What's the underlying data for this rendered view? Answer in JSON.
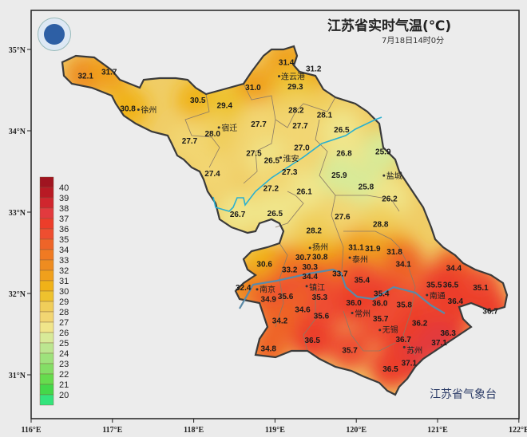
{
  "title": "江苏省实时气温(℃)",
  "subtitle": "7月18日14时0分",
  "watermark": "江苏省气象台",
  "axes": {
    "lon_ticks": [
      "116°E",
      "117°E",
      "118°E",
      "119°E",
      "120°E",
      "121°E",
      "122°E"
    ],
    "lat_ticks": [
      "35°N",
      "34°N",
      "33°N",
      "32°N",
      "31°N"
    ],
    "lon_range": [
      116,
      122
    ],
    "lat_range": [
      30.55,
      35.48
    ]
  },
  "legend": {
    "labels": [
      "40",
      "39",
      "38",
      "37",
      "36",
      "35",
      "34",
      "33",
      "32",
      "31",
      "30",
      "29",
      "28",
      "27",
      "26",
      "25",
      "24",
      "23",
      "22",
      "21",
      "20"
    ],
    "colors": [
      "#a01420",
      "#b81a24",
      "#d0262e",
      "#e23a3e",
      "#ec3d2a",
      "#ee4e30",
      "#ee6428",
      "#f07a22",
      "#ee8c20",
      "#f0a01c",
      "#f0b218",
      "#eec22e",
      "#f0ce5a",
      "#f2d672",
      "#f0e58a",
      "#d8ea98",
      "#bce690",
      "#9ee27c",
      "#84de66",
      "#66dc4e",
      "#44d84a",
      "#34e47c"
    ]
  },
  "cities": [
    {
      "name": "连云港",
      "lon": 119.05,
      "lat": 34.67
    },
    {
      "name": "徐州",
      "lon": 117.32,
      "lat": 34.26
    },
    {
      "name": "宿迁",
      "lon": 118.31,
      "lat": 34.04
    },
    {
      "name": "淮安",
      "lon": 119.07,
      "lat": 33.67
    },
    {
      "name": "盐城",
      "lon": 120.34,
      "lat": 33.45
    },
    {
      "name": "扬州",
      "lon": 119.43,
      "lat": 32.56
    },
    {
      "name": "泰州",
      "lon": 119.92,
      "lat": 32.44
    },
    {
      "name": "南京",
      "lon": 118.78,
      "lat": 32.05
    },
    {
      "name": "镇江",
      "lon": 119.39,
      "lat": 32.09
    },
    {
      "name": "常州",
      "lon": 119.95,
      "lat": 31.76
    },
    {
      "name": "南通",
      "lon": 120.87,
      "lat": 31.98
    },
    {
      "name": "无锡",
      "lon": 120.29,
      "lat": 31.55
    },
    {
      "name": "苏州",
      "lon": 120.59,
      "lat": 31.34
    }
  ],
  "readings": [
    {
      "v": "32.1",
      "lon": 116.67,
      "lat": 34.68
    },
    {
      "v": "31.7",
      "lon": 116.96,
      "lat": 34.73
    },
    {
      "v": "31.4",
      "lon": 119.14,
      "lat": 34.85
    },
    {
      "v": "31.2",
      "lon": 119.46,
      "lat": 34.77
    },
    {
      "v": "31.0",
      "lon": 118.73,
      "lat": 34.54
    },
    {
      "v": "29.3",
      "lon": 119.25,
      "lat": 34.55
    },
    {
      "v": "30.5",
      "lon": 118.05,
      "lat": 34.38
    },
    {
      "v": "29.4",
      "lon": 118.38,
      "lat": 34.32
    },
    {
      "v": "30.8",
      "lon": 117.19,
      "lat": 34.28
    },
    {
      "v": "28.2",
      "lon": 119.26,
      "lat": 34.26
    },
    {
      "v": "28.1",
      "lon": 119.61,
      "lat": 34.2
    },
    {
      "v": "27.7",
      "lon": 118.8,
      "lat": 34.09
    },
    {
      "v": "27.7",
      "lon": 119.31,
      "lat": 34.07
    },
    {
      "v": "26.5",
      "lon": 119.82,
      "lat": 34.02
    },
    {
      "v": "28.0",
      "lon": 118.24,
      "lat": 33.97
    },
    {
      "v": "27.7",
      "lon": 117.95,
      "lat": 33.88
    },
    {
      "v": "27.5",
      "lon": 118.74,
      "lat": 33.73
    },
    {
      "v": "27.0",
      "lon": 119.33,
      "lat": 33.77
    },
    {
      "v": "26.8",
      "lon": 119.85,
      "lat": 33.73
    },
    {
      "v": "25.9",
      "lon": 120.33,
      "lat": 33.75
    },
    {
      "v": "26.5",
      "lon": 118.96,
      "lat": 33.64
    },
    {
      "v": "27.4",
      "lon": 118.23,
      "lat": 33.48
    },
    {
      "v": "27.3",
      "lon": 119.18,
      "lat": 33.5
    },
    {
      "v": "25.9",
      "lon": 119.79,
      "lat": 33.46
    },
    {
      "v": "25.8",
      "lon": 120.12,
      "lat": 33.32
    },
    {
      "v": "26.1",
      "lon": 119.36,
      "lat": 33.26
    },
    {
      "v": "27.2",
      "lon": 118.95,
      "lat": 33.3
    },
    {
      "v": "26.2",
      "lon": 120.41,
      "lat": 33.17
    },
    {
      "v": "26.7",
      "lon": 118.54,
      "lat": 32.98
    },
    {
      "v": "26.5",
      "lon": 119.0,
      "lat": 32.99
    },
    {
      "v": "27.6",
      "lon": 119.83,
      "lat": 32.95
    },
    {
      "v": "28.8",
      "lon": 120.3,
      "lat": 32.86
    },
    {
      "v": "28.2",
      "lon": 119.48,
      "lat": 32.78
    },
    {
      "v": "31.1",
      "lon": 120.02,
      "lat": 32.56
    },
    {
      "v": "31.9",
      "lon": 120.18,
      "lat": 32.51
    },
    {
      "v": "31.8",
      "lon": 120.47,
      "lat": 32.52
    },
    {
      "v": "30.6",
      "lon": 118.87,
      "lat": 32.37
    },
    {
      "v": "30.8",
      "lon": 119.55,
      "lat": 32.45
    },
    {
      "v": "30.3",
      "lon": 119.43,
      "lat": 32.41
    },
    {
      "v": "30.7",
      "lon": 119.35,
      "lat": 32.37
    },
    {
      "v": "33.2",
      "lon": 119.18,
      "lat": 32.3
    },
    {
      "v": "34.1",
      "lon": 120.58,
      "lat": 32.37
    },
    {
      "v": "34.4",
      "lon": 121.2,
      "lat": 32.32
    },
    {
      "v": "33.7",
      "lon": 119.8,
      "lat": 32.25
    },
    {
      "v": "34.4",
      "lon": 119.43,
      "lat": 32.19
    },
    {
      "v": "35.4",
      "lon": 120.07,
      "lat": 32.17
    },
    {
      "v": "35.5",
      "lon": 121.0,
      "lat": 32.09
    },
    {
      "v": "36.5",
      "lon": 121.12,
      "lat": 32.11
    },
    {
      "v": "35.1",
      "lon": 121.53,
      "lat": 32.08
    },
    {
      "v": "32.4",
      "lon": 118.61,
      "lat": 32.08
    },
    {
      "v": "34.9",
      "lon": 118.92,
      "lat": 31.94
    },
    {
      "v": "35.6",
      "lon": 119.13,
      "lat": 31.97
    },
    {
      "v": "35.3",
      "lon": 119.55,
      "lat": 31.99
    },
    {
      "v": "35.4",
      "lon": 120.31,
      "lat": 31.99
    },
    {
      "v": "36.0",
      "lon": 120.29,
      "lat": 31.9
    },
    {
      "v": "36.0",
      "lon": 119.97,
      "lat": 31.88
    },
    {
      "v": "35.8",
      "lon": 120.59,
      "lat": 31.87
    },
    {
      "v": "36.4",
      "lon": 121.22,
      "lat": 31.91
    },
    {
      "v": "36.7",
      "lon": 121.65,
      "lat": 31.79
    },
    {
      "v": "34.6",
      "lon": 119.34,
      "lat": 31.81
    },
    {
      "v": "35.6",
      "lon": 119.57,
      "lat": 31.73
    },
    {
      "v": "34.2",
      "lon": 119.06,
      "lat": 31.67
    },
    {
      "v": "35.7",
      "lon": 120.3,
      "lat": 31.62
    },
    {
      "v": "36.2",
      "lon": 120.78,
      "lat": 31.64
    },
    {
      "v": "36.3",
      "lon": 121.13,
      "lat": 31.52
    },
    {
      "v": "36.7",
      "lon": 120.58,
      "lat": 31.41
    },
    {
      "v": "37.1",
      "lon": 121.02,
      "lat": 31.4
    },
    {
      "v": "36.5",
      "lon": 119.46,
      "lat": 31.43
    },
    {
      "v": "35.7",
      "lon": 119.92,
      "lat": 31.31
    },
    {
      "v": "34.8",
      "lon": 118.92,
      "lat": 31.33
    },
    {
      "v": "37.1",
      "lon": 120.65,
      "lat": 31.15
    },
    {
      "v": "36.5",
      "lon": 120.42,
      "lat": 31.08
    }
  ]
}
